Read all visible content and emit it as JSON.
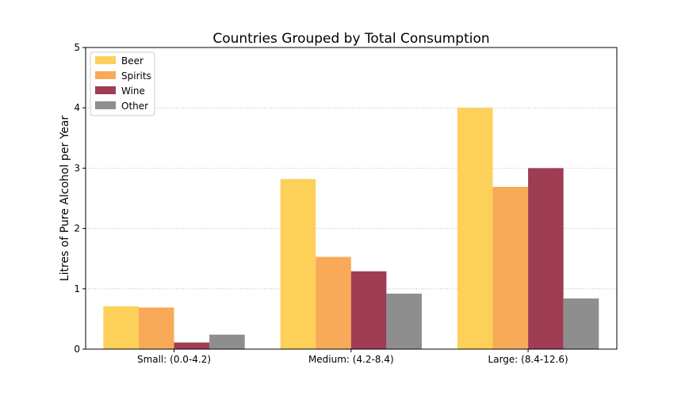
{
  "chart_data": {
    "type": "bar",
    "title": "Countries Grouped by Total Consumption",
    "xlabel": "",
    "ylabel": "Litres of Pure Alcohol per Year",
    "categories": [
      "Small: (0.0-4.2)",
      "Medium: (4.2-8.4)",
      "Large: (8.4-12.6)"
    ],
    "series": [
      {
        "name": "Beer",
        "color": "#fdd05a",
        "values": [
          0.71,
          2.82,
          4.0
        ]
      },
      {
        "name": "Spirits",
        "color": "#f8aa58",
        "values": [
          0.69,
          1.53,
          2.69
        ]
      },
      {
        "name": "Wine",
        "color": "#9e3d54",
        "values": [
          0.11,
          1.29,
          3.0
        ]
      },
      {
        "name": "Other",
        "color": "#8e8e8e",
        "values": [
          0.24,
          0.92,
          0.84
        ]
      }
    ],
    "ylim": [
      0,
      5
    ],
    "yticks": [
      0,
      1,
      2,
      3,
      4,
      5
    ],
    "grid": "y-dotted",
    "legend_position": "top-left"
  }
}
